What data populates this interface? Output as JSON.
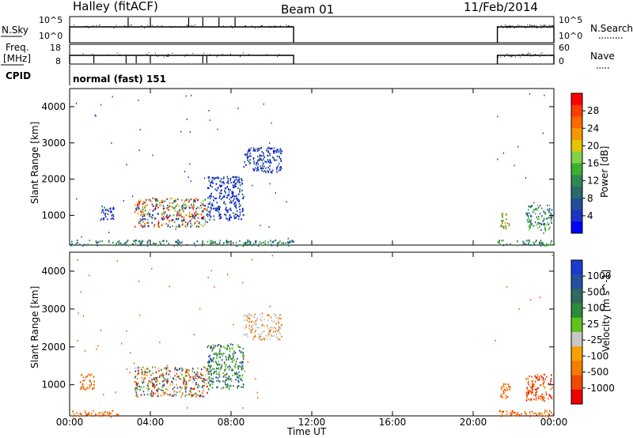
{
  "header": {
    "station": "Halley (fitACF)",
    "beam": "Beam 01",
    "date": "11/Feb/2014"
  },
  "top_panels": {
    "nsky_label": "N.Sky",
    "nsearch_label": "N.Search",
    "freq_label_line1": "Freq.",
    "freq_label_line2": "[MHz]",
    "nave_label": "Nave",
    "cpid_label": "CPID",
    "cpid_text": "normal (fast) 151",
    "nsky_ticks": [
      "10^5",
      "10^0"
    ],
    "nsearch_ticks": [
      "10^5",
      "10^0"
    ],
    "freq_ticks": [
      "18",
      "8"
    ],
    "nave_ticks": [
      "60",
      "0"
    ]
  },
  "power_colorbar": {
    "label": "Power [dB]",
    "ticks": [
      "28",
      "24",
      "20",
      "16",
      "12",
      "8",
      "4"
    ],
    "colors": [
      "#ff0000",
      "#ff3c00",
      "#ff6a00",
      "#f39a00",
      "#e5c300",
      "#7fd34a",
      "#3cb02c",
      "#2e8a52",
      "#2a6a6a",
      "#234e9a",
      "#1c34c6",
      "#0000ff"
    ]
  },
  "velocity_colorbar": {
    "label": "Velocity [m s^-1]",
    "ticks": [
      "1000",
      "500",
      "100",
      "25",
      "-25",
      "-100",
      "-500",
      "-1000"
    ],
    "colors": [
      "#1b3bd0",
      "#2450a0",
      "#2e6a5e",
      "#2e8a3a",
      "#5fc21c",
      "#c8c8c8",
      "#f8a000",
      "#f57d00",
      "#f04a00",
      "#ee0000"
    ]
  },
  "chart_data": [
    {
      "type": "heatmap",
      "title": "",
      "xlabel": "Time UT",
      "ylabel": "Slant Range [km]",
      "xticks": [
        "00:00",
        "04:00",
        "08:00",
        "12:00",
        "16:00",
        "20:00",
        "00:00"
      ],
      "yticks": [
        "1000",
        "2000",
        "3000",
        "4000"
      ],
      "xlim_hours": [
        0,
        24
      ],
      "ylim_km": [
        180,
        4500
      ],
      "quantity": "Power [dB]",
      "regions": [
        {
          "t0": 0.0,
          "t1": 11.1,
          "r0": 180,
          "r1": 340,
          "value": "mixed"
        },
        {
          "t0": 1.5,
          "t1": 2.2,
          "r0": 900,
          "r1": 1300,
          "value": "4-12 dB"
        },
        {
          "t0": 3.2,
          "t1": 6.8,
          "r0": 700,
          "r1": 1500,
          "value": "8-28 dB"
        },
        {
          "t0": 6.8,
          "t1": 8.6,
          "r0": 900,
          "r1": 2100,
          "value": "4-12 dB"
        },
        {
          "t0": 8.6,
          "t1": 10.5,
          "r0": 2200,
          "r1": 2900,
          "value": "4-12 dB"
        },
        {
          "t0": 21.2,
          "t1": 24.0,
          "r0": 180,
          "r1": 340,
          "value": "mixed"
        },
        {
          "t0": 21.3,
          "t1": 21.8,
          "r0": 650,
          "r1": 1100,
          "value": "12-24 dB"
        },
        {
          "t0": 22.6,
          "t1": 23.9,
          "r0": 600,
          "r1": 1300,
          "value": "4-16 dB"
        }
      ]
    },
    {
      "type": "heatmap",
      "title": "",
      "xlabel": "Time UT",
      "ylabel": "Slant Range [km]",
      "xticks": [
        "00:00",
        "04:00",
        "08:00",
        "12:00",
        "16:00",
        "20:00",
        "00:00"
      ],
      "yticks": [
        "1000",
        "2000",
        "3000",
        "4000"
      ],
      "xlim_hours": [
        0,
        24
      ],
      "ylim_km": [
        180,
        4500
      ],
      "quantity": "Velocity [m s^-1]",
      "regions": [
        {
          "t0": 0.0,
          "t1": 2.5,
          "r0": 180,
          "r1": 340,
          "value": "-100 to -500"
        },
        {
          "t0": 0.5,
          "t1": 1.2,
          "r0": 900,
          "r1": 1300,
          "value": "-100 to -500"
        },
        {
          "t0": 3.2,
          "t1": 6.8,
          "r0": 700,
          "r1": 1500,
          "value": "-1000 to 1000"
        },
        {
          "t0": 6.8,
          "t1": 8.6,
          "r0": 900,
          "r1": 2100,
          "value": "25 to 500"
        },
        {
          "t0": 8.6,
          "t1": 10.5,
          "r0": 2200,
          "r1": 2900,
          "value": "-25 to 25"
        },
        {
          "t0": 21.2,
          "t1": 24.0,
          "r0": 180,
          "r1": 340,
          "value": "-100 to -500"
        },
        {
          "t0": 21.3,
          "t1": 21.8,
          "r0": 650,
          "r1": 1100,
          "value": "-100 to -500"
        },
        {
          "t0": 22.6,
          "t1": 23.9,
          "r0": 600,
          "r1": 1300,
          "value": "-100 to -1000"
        }
      ]
    }
  ]
}
